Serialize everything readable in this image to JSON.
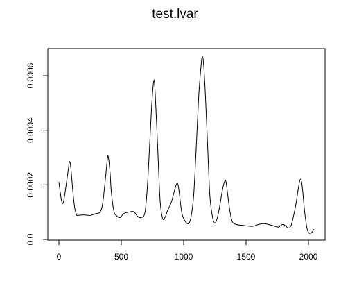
{
  "chart_data": {
    "type": "line",
    "title": "test.lvar",
    "xlabel": "",
    "ylabel": "",
    "xlim": [
      0,
      2050
    ],
    "ylim": [
      0,
      0.0007
    ],
    "x_ticks": [
      0,
      500,
      1000,
      1500,
      2000
    ],
    "x_tick_labels": [
      "0",
      "500",
      "1000",
      "1500",
      "2000"
    ],
    "y_ticks": [
      0.0,
      0.0002,
      0.0004,
      0.0006
    ],
    "y_tick_labels": [
      "0.0",
      "0.0002",
      "0.0004",
      "0.0006"
    ],
    "grid": false,
    "line_color": "#000000",
    "series": [
      {
        "x": [
          0,
          20,
          35,
          55,
          75,
          85,
          95,
          110,
          125,
          140,
          150,
          200,
          250,
          300,
          330,
          350,
          370,
          385,
          395,
          410,
          420,
          440,
          460,
          490,
          520,
          560,
          600,
          630,
          660,
          690,
          710,
          730,
          745,
          760,
          770,
          790,
          810,
          830,
          850,
          870,
          900,
          930,
          945,
          955,
          965,
          985,
          1010,
          1040,
          1060,
          1080,
          1100,
          1120,
          1140,
          1150,
          1160,
          1175,
          1195,
          1210,
          1230,
          1250,
          1270,
          1290,
          1310,
          1330,
          1340,
          1350,
          1370,
          1390,
          1420,
          1460,
          1500,
          1550,
          1600,
          1640,
          1680,
          1720,
          1760,
          1780,
          1800,
          1820,
          1840,
          1860,
          1880,
          1900,
          1920,
          1935,
          1950,
          1970,
          1990,
          2010,
          2030,
          2045
        ],
        "y": [
          0.00021,
          0.000145,
          0.000135,
          0.00019,
          0.000255,
          0.000285,
          0.000265,
          0.000185,
          0.00012,
          9.2e-05,
          8.8e-05,
          9e-05,
          8.8e-05,
          9.5e-05,
          0.0001,
          0.00013,
          0.00021,
          0.00028,
          0.000305,
          0.000245,
          0.000175,
          0.000105,
          8.8e-05,
          8e-05,
          9.5e-05,
          0.0001,
          0.000102,
          8.5e-05,
          8e-05,
          0.0001,
          0.0002,
          0.00037,
          0.0005,
          0.00058,
          0.00055,
          0.000355,
          0.00015,
          7.8e-05,
          8e-05,
          0.000105,
          0.000135,
          0.000185,
          0.000205,
          0.0002,
          0.00017,
          9.8e-05,
          6.8e-05,
          5.8e-05,
          8.5e-05,
          0.00016,
          0.00033,
          0.00052,
          0.00064,
          0.00067,
          0.00064,
          0.00052,
          0.00031,
          0.00016,
          8.5e-05,
          6e-05,
          8e-05,
          0.000125,
          0.00018,
          0.000215,
          0.00021,
          0.000175,
          0.000105,
          6.5e-05,
          5.5e-05,
          5.2e-05,
          5e-05,
          4.8e-05,
          5.5e-05,
          5.8e-05,
          5.5e-05,
          5e-05,
          4.5e-05,
          5.2e-05,
          5.5e-05,
          4.8e-05,
          4.2e-05,
          5e-05,
          8.5e-05,
          0.00013,
          0.00019,
          0.00022,
          0.000195,
          0.0001,
          3.8e-05,
          2.2e-05,
          2.8e-05,
          3.8e-05
        ]
      }
    ]
  }
}
